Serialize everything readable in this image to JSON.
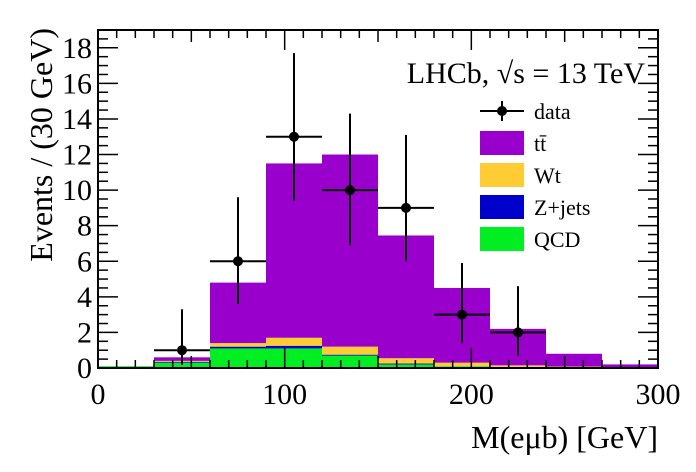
{
  "chart_data": {
    "type": "bar",
    "stacked": true,
    "experiment_label": "LHCb, √s = 13 TeV",
    "xlabel": "M(eμb) [GeV]",
    "ylabel": "Events / (30 GeV)",
    "xlim": [
      0,
      300
    ],
    "ylim": [
      0,
      19
    ],
    "x_ticks": [
      "0",
      "100",
      "200",
      "300"
    ],
    "y_ticks": [
      "0",
      "2",
      "4",
      "6",
      "8",
      "10",
      "12",
      "14",
      "16",
      "18"
    ],
    "bin_edges": [
      0,
      30,
      60,
      90,
      120,
      150,
      180,
      210,
      240,
      270,
      300
    ],
    "series": [
      {
        "name": "QCD",
        "color": "#00ee22",
        "values": [
          0.1,
          0.3,
          1.1,
          1.1,
          0.7,
          0.2,
          0.1,
          0.05,
          0.03,
          0.02
        ]
      },
      {
        "name": "Z+jets",
        "color": "#0000cc",
        "values": [
          0,
          0.05,
          0.1,
          0.15,
          0.05,
          0.05,
          0.0,
          0.0,
          0.0,
          0.0
        ]
      },
      {
        "name": "Wt",
        "color": "#ffcc33",
        "values": [
          0.0,
          0.05,
          0.2,
          0.45,
          0.45,
          0.3,
          0.2,
          0.1,
          0.05,
          0.03
        ]
      },
      {
        "name": "tt̄",
        "color": "#9900cc",
        "values": [
          0.0,
          0.2,
          3.4,
          9.8,
          10.8,
          6.9,
          4.2,
          2.05,
          0.72,
          0.15
        ]
      }
    ],
    "data": {
      "name": "data",
      "x": [
        45,
        75,
        105,
        135,
        165,
        195,
        225
      ],
      "y": [
        1,
        6,
        13,
        10,
        9,
        3,
        2
      ],
      "yerr_low": [
        0.83,
        2.4,
        3.6,
        3.1,
        3.0,
        1.6,
        1.3
      ],
      "yerr_high": [
        2.3,
        3.6,
        4.7,
        4.3,
        4.1,
        2.9,
        2.6
      ],
      "xerr": 15
    },
    "legend": {
      "position": "top-right",
      "entries": [
        {
          "label": "data",
          "style": "marker"
        },
        {
          "label": "tt̄",
          "color": "#9900cc"
        },
        {
          "label": "Wt",
          "color": "#ffcc33"
        },
        {
          "label": "Z+jets",
          "color": "#0000cc"
        },
        {
          "label": "QCD",
          "color": "#00ee22"
        }
      ]
    }
  }
}
